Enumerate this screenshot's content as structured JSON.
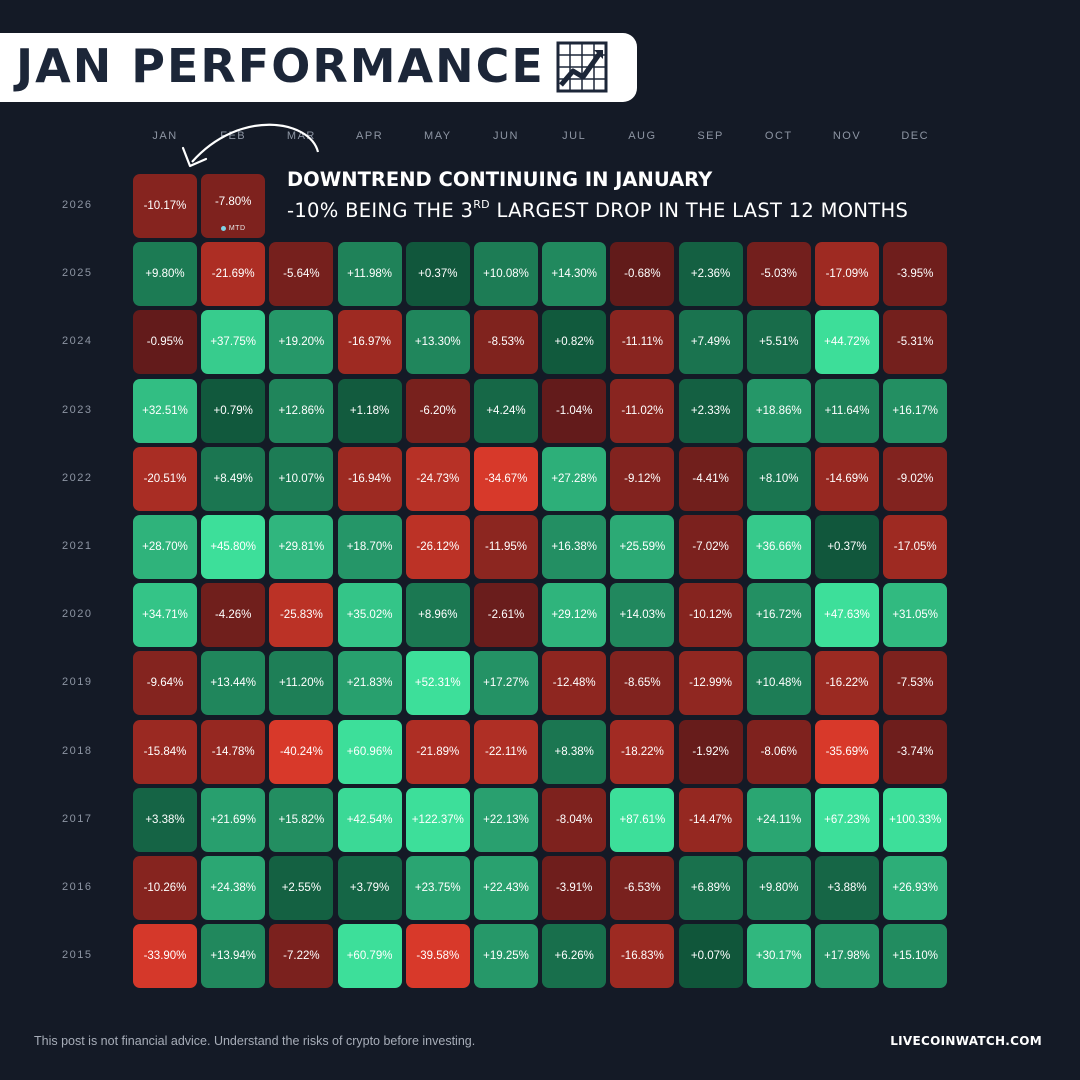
{
  "title": {
    "text": "JAN PERFORMANCE",
    "icon": "line-chart-icon"
  },
  "annotation": {
    "headline": "DOWNTREND CONTINUING IN JANUARY",
    "sub_prefix": "-10% BEING THE 3",
    "sub_sup": "RD",
    "sub_suffix": " LARGEST DROP IN THE LAST 12 MONTHS"
  },
  "footer": {
    "disclaimer": "This post is not financial advice. Understand the risks of crypto before investing.",
    "brand": "LIVECOINWATCH.COM"
  },
  "chart_data": {
    "type": "heatmap",
    "title": "JAN PERFORMANCE",
    "columns": [
      "JAN",
      "FEB",
      "MAR",
      "APR",
      "MAY",
      "JUN",
      "JUL",
      "AUG",
      "SEP",
      "OCT",
      "NOV",
      "DEC"
    ],
    "rows": [
      {
        "year": "2026",
        "values": [
          -10.17,
          -7.8
        ],
        "labels": [
          "-10.17%",
          "-7.80%"
        ],
        "tag": {
          "col": 1,
          "text": "MTD"
        }
      },
      {
        "year": "2025",
        "values": [
          9.8,
          -21.69,
          -5.64,
          11.98,
          0.37,
          10.08,
          14.3,
          -0.68,
          2.36,
          -5.03,
          -17.09,
          -3.95
        ],
        "labels": [
          "+9.80%",
          "-21.69%",
          "-5.64%",
          "+11.98%",
          "+0.37%",
          "+10.08%",
          "+14.30%",
          "-0.68%",
          "+2.36%",
          "-5.03%",
          "-17.09%",
          "-3.95%"
        ]
      },
      {
        "year": "2024",
        "values": [
          -0.95,
          37.75,
          19.2,
          -16.97,
          13.3,
          -8.53,
          0.82,
          -11.11,
          7.49,
          5.51,
          44.72,
          -5.31
        ],
        "labels": [
          "-0.95%",
          "+37.75%",
          "+19.20%",
          "-16.97%",
          "+13.30%",
          "-8.53%",
          "+0.82%",
          "-11.11%",
          "+7.49%",
          "+5.51%",
          "+44.72%",
          "-5.31%"
        ]
      },
      {
        "year": "2023",
        "values": [
          32.51,
          0.79,
          12.86,
          1.18,
          -6.2,
          4.24,
          -1.04,
          -11.02,
          2.33,
          18.86,
          11.64,
          16.17
        ],
        "labels": [
          "+32.51%",
          "+0.79%",
          "+12.86%",
          "+1.18%",
          "-6.20%",
          "+4.24%",
          "-1.04%",
          "-11.02%",
          "+2.33%",
          "+18.86%",
          "+11.64%",
          "+16.17%"
        ]
      },
      {
        "year": "2022",
        "values": [
          -20.51,
          8.49,
          10.07,
          -16.94,
          -24.73,
          -34.67,
          27.28,
          -9.12,
          -4.41,
          8.1,
          -14.69,
          -9.02
        ],
        "labels": [
          "-20.51%",
          "+8.49%",
          "+10.07%",
          "-16.94%",
          "-24.73%",
          "-34.67%",
          "+27.28%",
          "-9.12%",
          "-4.41%",
          "+8.10%",
          "-14.69%",
          "-9.02%"
        ]
      },
      {
        "year": "2021",
        "values": [
          28.7,
          45.8,
          29.81,
          18.7,
          -26.12,
          -11.95,
          16.38,
          25.59,
          -7.02,
          36.66,
          0.37,
          -17.05
        ],
        "labels": [
          "+28.70%",
          "+45.80%",
          "+29.81%",
          "+18.70%",
          "-26.12%",
          "-11.95%",
          "+16.38%",
          "+25.59%",
          "-7.02%",
          "+36.66%",
          "+0.37%",
          "-17.05%"
        ]
      },
      {
        "year": "2020",
        "values": [
          34.71,
          -4.26,
          -25.83,
          35.02,
          8.96,
          -2.61,
          29.12,
          14.03,
          -10.12,
          16.72,
          47.63,
          31.05
        ],
        "labels": [
          "+34.71%",
          "-4.26%",
          "-25.83%",
          "+35.02%",
          "+8.96%",
          "-2.61%",
          "+29.12%",
          "+14.03%",
          "-10.12%",
          "+16.72%",
          "+47.63%",
          "+31.05%"
        ]
      },
      {
        "year": "2019",
        "values": [
          -9.64,
          13.44,
          11.2,
          21.83,
          52.31,
          17.27,
          -12.48,
          -8.65,
          -12.99,
          10.48,
          -16.22,
          -7.53
        ],
        "labels": [
          "-9.64%",
          "+13.44%",
          "+11.20%",
          "+21.83%",
          "+52.31%",
          "+17.27%",
          "-12.48%",
          "-8.65%",
          "-12.99%",
          "+10.48%",
          "-16.22%",
          "-7.53%"
        ]
      },
      {
        "year": "2018",
        "values": [
          -15.84,
          -14.78,
          -40.24,
          60.96,
          -21.89,
          -22.11,
          8.38,
          -18.22,
          -1.92,
          -8.06,
          -35.69,
          -3.74
        ],
        "labels": [
          "-15.84%",
          "-14.78%",
          "-40.24%",
          "+60.96%",
          "-21.89%",
          "-22.11%",
          "+8.38%",
          "-18.22%",
          "-1.92%",
          "-8.06%",
          "-35.69%",
          "-3.74%"
        ]
      },
      {
        "year": "2017",
        "values": [
          3.38,
          21.69,
          15.82,
          42.54,
          122.37,
          22.13,
          -8.04,
          87.61,
          -14.47,
          24.11,
          67.23,
          100.33
        ],
        "labels": [
          "+3.38%",
          "+21.69%",
          "+15.82%",
          "+42.54%",
          "+122.37%",
          "+22.13%",
          "-8.04%",
          "+87.61%",
          "-14.47%",
          "+24.11%",
          "+67.23%",
          "+100.33%"
        ]
      },
      {
        "year": "2016",
        "values": [
          -10.26,
          24.38,
          2.55,
          3.79,
          23.75,
          22.43,
          -3.91,
          -6.53,
          6.89,
          9.8,
          3.88,
          26.93
        ],
        "labels": [
          "-10.26%",
          "+24.38%",
          "+2.55%",
          "+3.79%",
          "+23.75%",
          "+22.43%",
          "-3.91%",
          "-6.53%",
          "+6.89%",
          "+9.80%",
          "+3.88%",
          "+26.93%"
        ]
      },
      {
        "year": "2015",
        "values": [
          -33.9,
          13.94,
          -7.22,
          60.79,
          -39.58,
          19.25,
          6.26,
          -16.83,
          0.07,
          30.17,
          17.98,
          15.1
        ],
        "labels": [
          "-33.90%",
          "+13.94%",
          "-7.22%",
          "+60.79%",
          "-39.58%",
          "+19.25%",
          "+6.26%",
          "-16.83%",
          "+0.07%",
          "+30.17%",
          "+17.98%",
          "+15.10%"
        ]
      }
    ],
    "colors": {
      "positive_low": "#10553a",
      "positive_high": "#3ddf9a",
      "negative_low": "#5e1a1a",
      "negative_high": "#d8392a"
    },
    "units": "%"
  }
}
